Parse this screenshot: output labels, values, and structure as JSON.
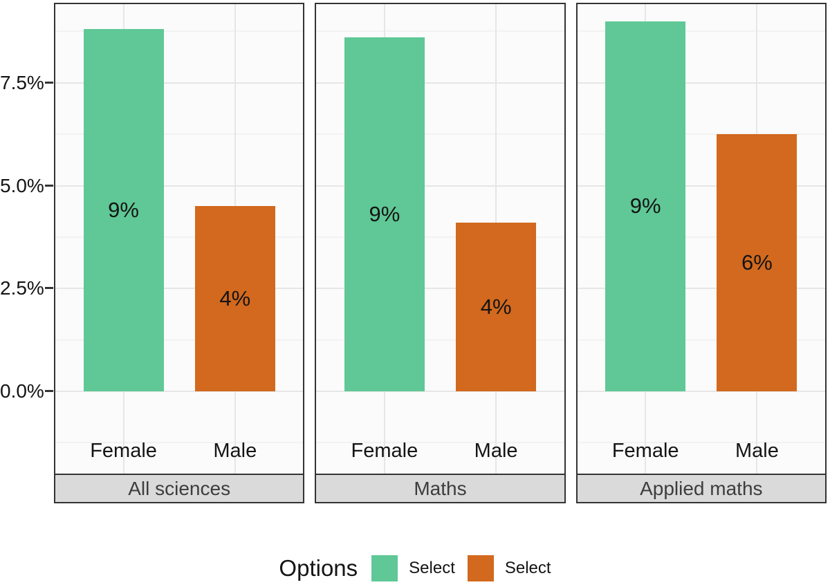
{
  "chart_data": {
    "type": "bar",
    "title": "",
    "facets": [
      {
        "label": "All sciences",
        "bars": [
          {
            "category": "Female",
            "series": "female",
            "value_pct": 8.8,
            "label": "9%"
          },
          {
            "category": "Male",
            "series": "male",
            "value_pct": 4.5,
            "label": "4%"
          }
        ]
      },
      {
        "label": "Maths",
        "bars": [
          {
            "category": "Female",
            "series": "female",
            "value_pct": 8.6,
            "label": "9%"
          },
          {
            "category": "Male",
            "series": "male",
            "value_pct": 4.1,
            "label": "4%"
          }
        ]
      },
      {
        "label": "Applied maths",
        "bars": [
          {
            "category": "Female",
            "series": "female",
            "value_pct": 9.0,
            "label": "9%"
          },
          {
            "category": "Male",
            "series": "male",
            "value_pct": 6.25,
            "label": "6%"
          }
        ]
      }
    ],
    "x_categories": [
      "Female",
      "Male"
    ],
    "y_axis": {
      "ticks": [
        "0.0%",
        "2.5%",
        "5.0%",
        "7.5%"
      ],
      "tick_values": [
        0,
        2.5,
        5,
        7.5
      ],
      "minor_values": [
        -1.25,
        1.25,
        3.75,
        6.25,
        8.75
      ],
      "range": [
        -2.0,
        9.45
      ]
    },
    "series_colors": {
      "female": "#5FC896",
      "male": "#D2691E"
    },
    "legend": {
      "title": "Options",
      "entries": [
        {
          "label": "Select",
          "color": "#5FC896",
          "series": "female"
        },
        {
          "label": "Select",
          "color": "#D2691E",
          "series": "male"
        }
      ],
      "position": "bottom"
    },
    "grid": "on",
    "panel_background": "#fbfbfb",
    "strip_background": "#dadada",
    "border_color": "#333333"
  }
}
